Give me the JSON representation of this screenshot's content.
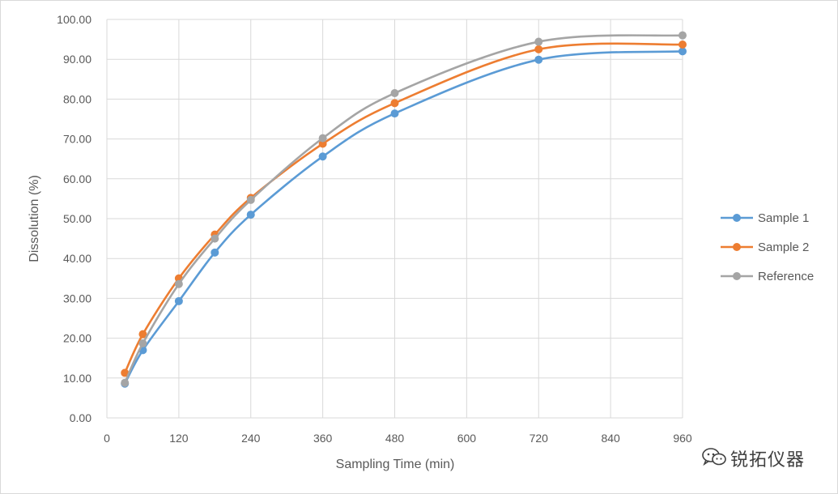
{
  "chart_data": {
    "type": "line",
    "xlabel": "Sampling Time (min)",
    "ylabel": "Dissolution (%)",
    "xlim": [
      0,
      960
    ],
    "ylim": [
      0,
      100
    ],
    "x_ticks": [
      "0",
      "120",
      "240",
      "360",
      "480",
      "600",
      "720",
      "840",
      "960"
    ],
    "y_ticks": [
      "0.00",
      "10.00",
      "20.00",
      "30.00",
      "40.00",
      "50.00",
      "60.00",
      "70.00",
      "80.00",
      "90.00",
      "100.00"
    ],
    "grid": true,
    "smooth": true,
    "legend_position": "right",
    "x": [
      30,
      60,
      120,
      180,
      240,
      360,
      480,
      720,
      960
    ],
    "series": [
      {
        "name": "Sample 1",
        "color": "#5b9bd5",
        "values": [
          8.6,
          17.0,
          29.3,
          41.5,
          51.0,
          65.6,
          76.4,
          89.9,
          92.0
        ]
      },
      {
        "name": "Sample 2",
        "color": "#ed7d31",
        "values": [
          11.3,
          21.0,
          35.0,
          46.0,
          55.2,
          68.8,
          79.0,
          92.5,
          93.7
        ]
      },
      {
        "name": "Reference",
        "color": "#a5a5a5",
        "values": [
          8.8,
          18.7,
          33.6,
          45.0,
          54.7,
          70.2,
          81.5,
          94.4,
          96.0
        ]
      }
    ]
  },
  "watermark": {
    "text": "锐拓仪器",
    "icon": "wechat-icon"
  }
}
